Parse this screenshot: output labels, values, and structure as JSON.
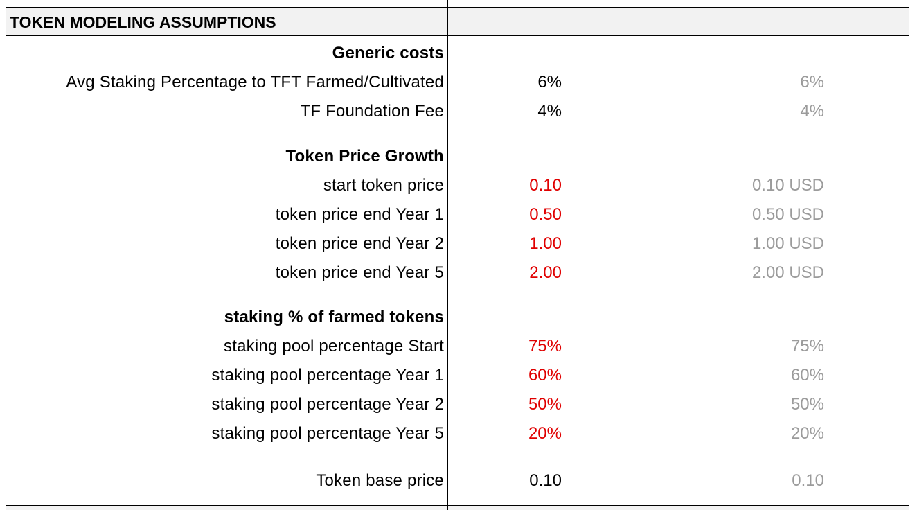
{
  "sheet": {
    "title": "TOKEN MODELING ASSUMPTIONS",
    "colors": {
      "input_red": "#e00000",
      "secondary_gray": "#9b9b9b",
      "header_fill": "#f2f2f2"
    },
    "rows": [
      {
        "label": "Generic costs",
        "bold": true,
        "v1": "",
        "v2": ""
      },
      {
        "label": "Avg Staking Percentage to TFT Farmed/Cultivated",
        "v1": "6%",
        "v1_style": "black",
        "v2": "6%"
      },
      {
        "label": "TF Foundation Fee",
        "v1": "4%",
        "v1_style": "black",
        "v2": "4%"
      },
      {
        "label": "Token Price Growth",
        "bold": true,
        "v1": "",
        "v2": ""
      },
      {
        "label": "start token price",
        "v1": "0.10",
        "v1_style": "red",
        "v2": "0.10 USD"
      },
      {
        "label": "token price end Year 1",
        "v1": "0.50",
        "v1_style": "red",
        "v2": "0.50 USD"
      },
      {
        "label": "token price end Year 2",
        "v1": "1.00",
        "v1_style": "red",
        "v2": "1.00 USD"
      },
      {
        "label": "token price end Year 5",
        "v1": "2.00",
        "v1_style": "red",
        "v2": "2.00 USD"
      },
      {
        "label": "staking % of farmed tokens",
        "bold": true,
        "v1": "",
        "v2": ""
      },
      {
        "label": "staking pool percentage Start",
        "v1": "75%",
        "v1_style": "red",
        "v2": "75%"
      },
      {
        "label": "staking pool percentage Year 1",
        "v1": "60%",
        "v1_style": "red",
        "v2": "60%"
      },
      {
        "label": "staking pool percentage Year 2",
        "v1": "50%",
        "v1_style": "red",
        "v2": "50%"
      },
      {
        "label": "staking pool percentage Year 5",
        "v1": "20%",
        "v1_style": "red",
        "v2": "20%"
      },
      {
        "label": "Token base price",
        "v1": "0.10",
        "v1_style": "black",
        "v2": "0.10"
      }
    ]
  }
}
